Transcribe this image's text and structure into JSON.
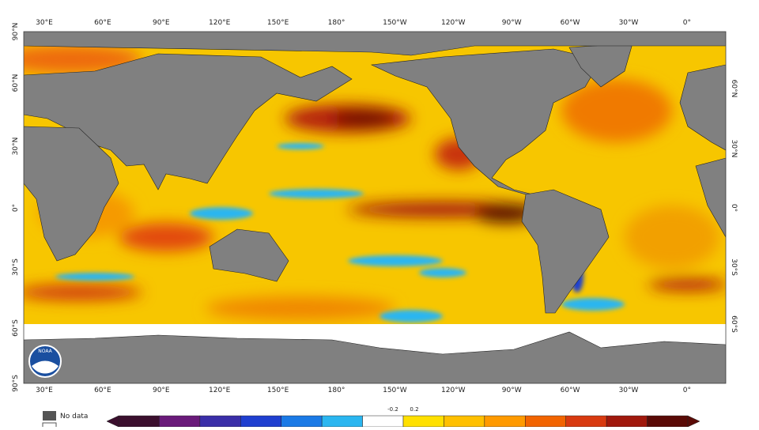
{
  "map": {
    "top_axis_labels": [
      "30°E",
      "60°E",
      "90°E",
      "120°E",
      "150°E",
      "180°",
      "150°W",
      "120°W",
      "90°W",
      "60°W",
      "30°W",
      "0°"
    ],
    "bottom_axis_labels": [
      "30°E",
      "60°E",
      "90°E",
      "120°E",
      "150°E",
      "180°",
      "150°W",
      "120°W",
      "90°W",
      "60°W",
      "30°W",
      "0°"
    ],
    "left_axis_labels": [
      "90°N",
      "60°N",
      "30°N",
      "0°",
      "30°S",
      "60°S",
      "90°S"
    ],
    "right_axis_labels": [
      "60°N",
      "30°N",
      "0°",
      "30°S",
      "60°S"
    ]
  },
  "logo": {
    "text": "NOAA"
  },
  "legend": {
    "no_data": "No data",
    "colorbar_labels": [
      "-0.2",
      "0.2"
    ],
    "colors": [
      "#3b0f2e",
      "#6a1a7a",
      "#3a2ea8",
      "#1f3fd0",
      "#1a7ae6",
      "#2ab6f0",
      "#ffffff",
      "#ffe000",
      "#ffc000",
      "#ff9a00",
      "#f26400",
      "#d83a10",
      "#a0180c",
      "#5a0a06"
    ]
  }
}
